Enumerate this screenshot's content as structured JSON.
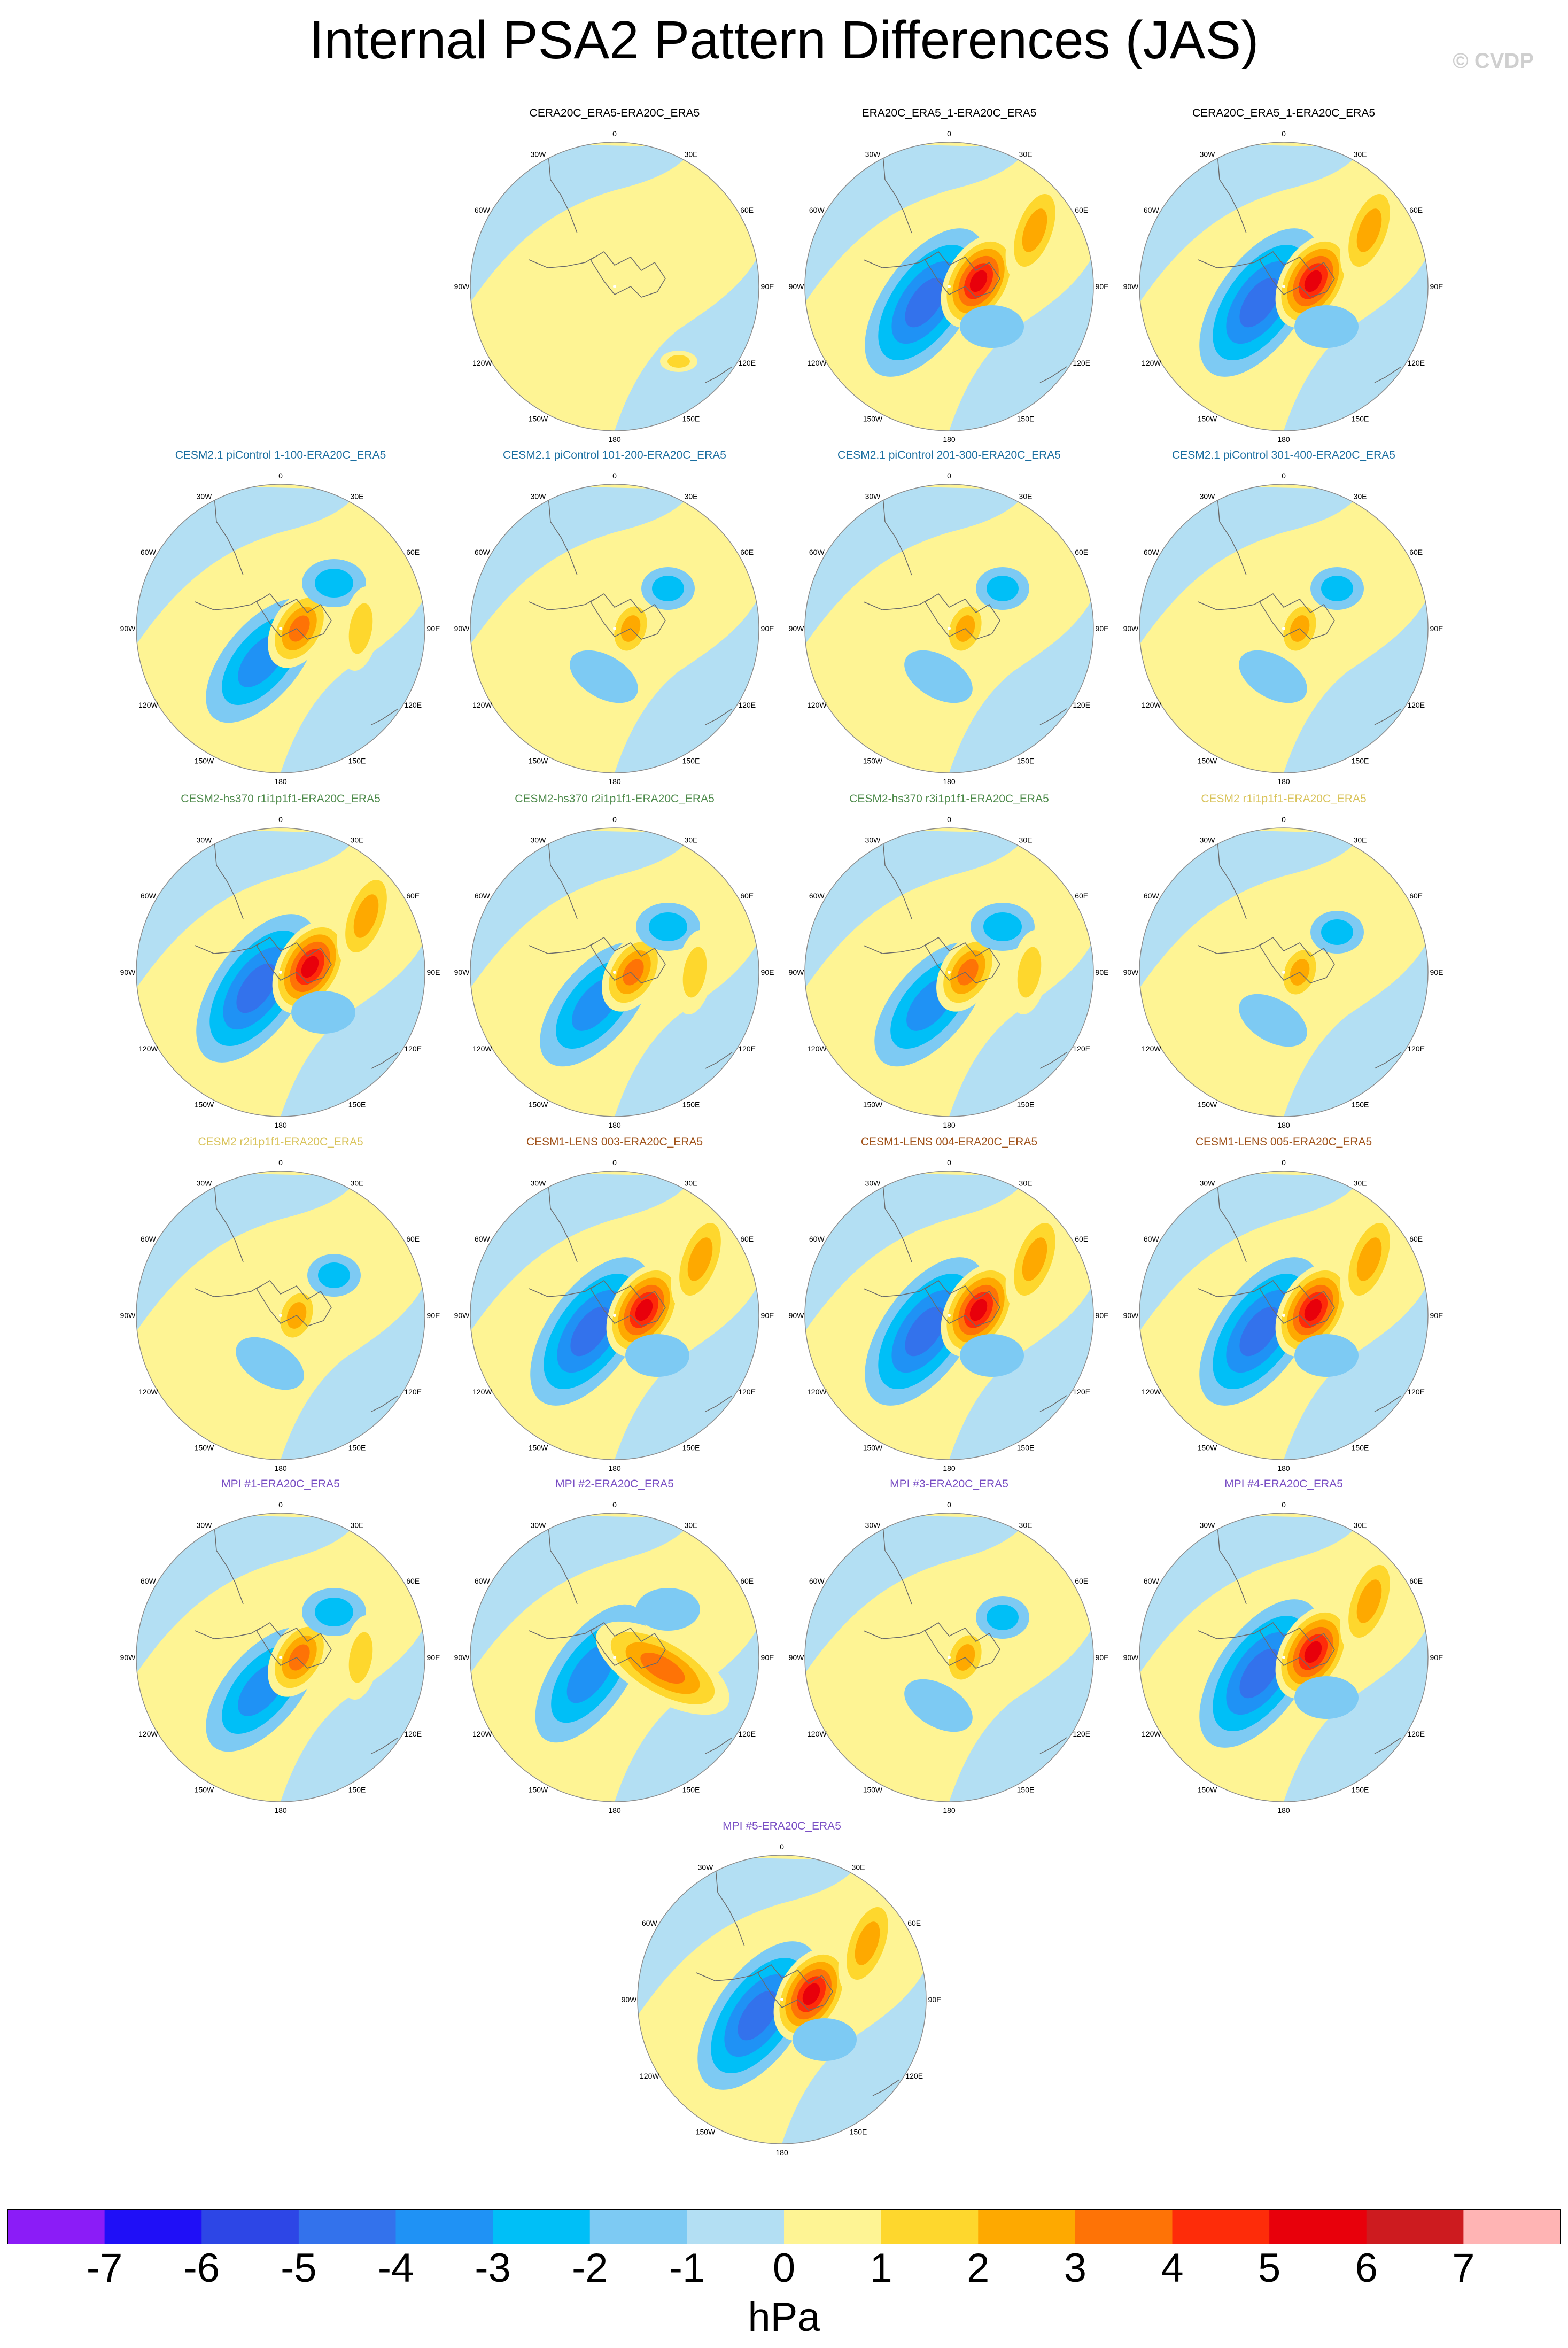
{
  "title": "Internal PSA2 Pattern Differences (JAS)",
  "credit": "© CVDP",
  "lon_labels": [
    "0",
    "30E",
    "60E",
    "90E",
    "120E",
    "150E",
    "180",
    "150W",
    "120W",
    "90W",
    "60W",
    "30W"
  ],
  "colorbar": {
    "colors": [
      "#8b1cf7",
      "#1f0ff7",
      "#2d46e6",
      "#3372ec",
      "#1f92f5",
      "#00bff7",
      "#7dcaf3",
      "#b3dff3",
      "#fef494",
      "#fed72d",
      "#fea900",
      "#fe7306",
      "#fe2c09",
      "#e8000b",
      "#cd1b1f",
      "#ffb4b4"
    ],
    "tick_labels": [
      "-7",
      "-6",
      "-5",
      "-4",
      "-3",
      "-2",
      "-1",
      "0",
      "1",
      "2",
      "3",
      "4",
      "5",
      "6",
      "7"
    ],
    "units": "hPa"
  },
  "panels": [
    {
      "title": "CERA20C_ERA5-ERA20C_ERA5",
      "title_color": "#000000",
      "pattern": "weak"
    },
    {
      "title": "ERA20C_ERA5_1-ERA20C_ERA5",
      "title_color": "#000000",
      "pattern": "strong"
    },
    {
      "title": "CERA20C_ERA5_1-ERA20C_ERA5",
      "title_color": "#000000",
      "pattern": "strong"
    },
    {
      "title": "CESM2.1 piControl 1-100-ERA20C_ERA5",
      "title_color": "#1a6ea0",
      "pattern": "medium"
    },
    {
      "title": "CESM2.1 piControl 101-200-ERA20C_ERA5",
      "title_color": "#1a6ea0",
      "pattern": "mild"
    },
    {
      "title": "CESM2.1 piControl 201-300-ERA20C_ERA5",
      "title_color": "#1a6ea0",
      "pattern": "mild"
    },
    {
      "title": "CESM2.1 piControl 301-400-ERA20C_ERA5",
      "title_color": "#1a6ea0",
      "pattern": "mild"
    },
    {
      "title": "CESM2-hs370 r1i1p1f1-ERA20C_ERA5",
      "title_color": "#4d8a4a",
      "pattern": "strong"
    },
    {
      "title": "CESM2-hs370 r2i1p1f1-ERA20C_ERA5",
      "title_color": "#4d8a4a",
      "pattern": "medium"
    },
    {
      "title": "CESM2-hs370 r3i1p1f1-ERA20C_ERA5",
      "title_color": "#4d8a4a",
      "pattern": "medium"
    },
    {
      "title": "CESM2 r1i1p1f1-ERA20C_ERA5",
      "title_color": "#d9c35a",
      "pattern": "mild"
    },
    {
      "title": "CESM2 r2i1p1f1-ERA20C_ERA5",
      "title_color": "#d9c35a",
      "pattern": "mild"
    },
    {
      "title": "CESM1-LENS 003-ERA20C_ERA5",
      "title_color": "#a0521a",
      "pattern": "strong"
    },
    {
      "title": "CESM1-LENS 004-ERA20C_ERA5",
      "title_color": "#a0521a",
      "pattern": "strong"
    },
    {
      "title": "CESM1-LENS 005-ERA20C_ERA5",
      "title_color": "#a0521a",
      "pattern": "strong"
    },
    {
      "title": "MPI #1-ERA20C_ERA5",
      "title_color": "#7a4fc4",
      "pattern": "medium"
    },
    {
      "title": "MPI #2-ERA20C_ERA5",
      "title_color": "#7a4fc4",
      "pattern": "band"
    },
    {
      "title": "MPI #3-ERA20C_ERA5",
      "title_color": "#7a4fc4",
      "pattern": "mild"
    },
    {
      "title": "MPI #4-ERA20C_ERA5",
      "title_color": "#7a4fc4",
      "pattern": "strong"
    },
    {
      "title": "MPI #5-ERA20C_ERA5",
      "title_color": "#7a4fc4",
      "pattern": "strong"
    }
  ]
}
